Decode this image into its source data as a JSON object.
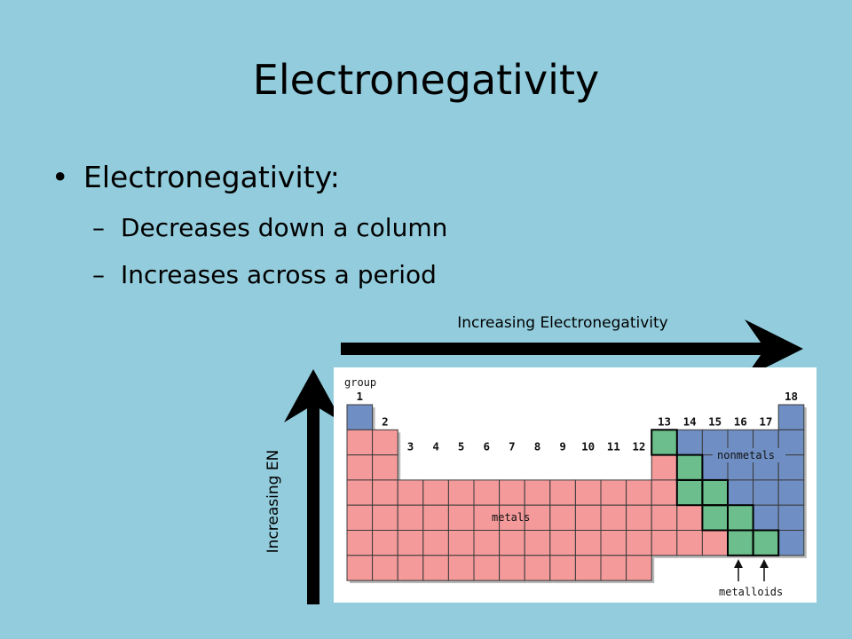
{
  "slide": {
    "title": "Electronegativity",
    "bullet": "Electronegativity:",
    "subpoints": [
      "Decreases down a column",
      "Increases across a period"
    ],
    "horizontal_arrow_label": "Increasing Electronegativity",
    "vertical_arrow_label": "Increasing EN"
  },
  "table": {
    "group_label": "group",
    "group_numbers": [
      "1",
      "2",
      "3",
      "4",
      "5",
      "6",
      "7",
      "8",
      "9",
      "10",
      "11",
      "12",
      "13",
      "14",
      "15",
      "16",
      "17",
      "18"
    ],
    "region_labels": {
      "metals": "metals",
      "nonmetals": "nonmetals",
      "metalloids": "metalloids"
    }
  },
  "colors": {
    "background": "#93cddd",
    "metals": "#f59a9a",
    "nonmetals": "#6f8fc4",
    "metalloids": "#6cbf8c",
    "arrows": "#000000"
  },
  "icons": {
    "right_arrow": "arrow-right-icon",
    "up_arrow": "arrow-up-icon"
  }
}
